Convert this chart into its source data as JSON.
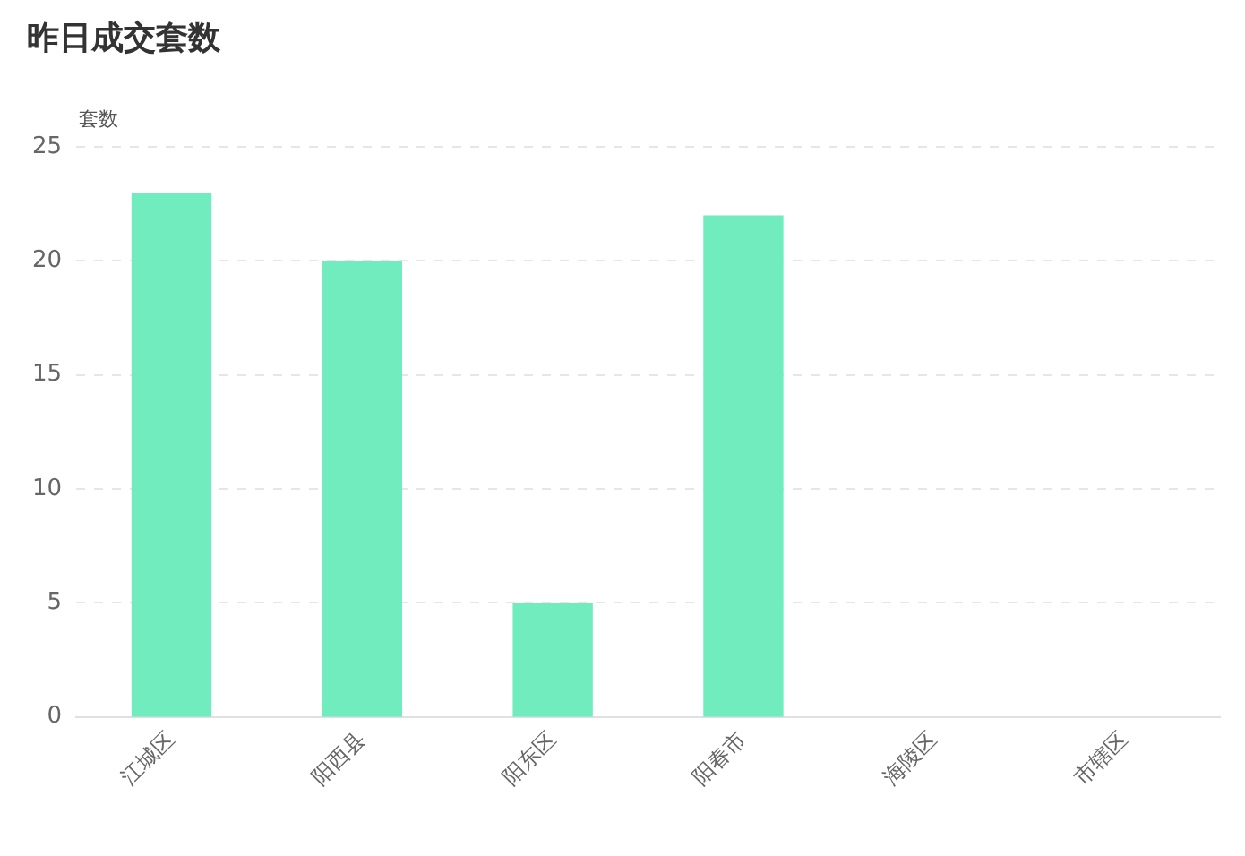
{
  "chart_data": {
    "type": "bar",
    "title": "昨日成交套数",
    "ylabel": "套数",
    "categories": [
      "江城区",
      "阳西县",
      "阳东区",
      "阳春市",
      "海陵区",
      "市辖区"
    ],
    "values": [
      23,
      20,
      5,
      22,
      0,
      0
    ],
    "color": "#70ecbe",
    "ylim": [
      0,
      25
    ],
    "yticks": [
      0,
      5,
      10,
      15,
      20,
      25
    ],
    "grid": "y"
  }
}
